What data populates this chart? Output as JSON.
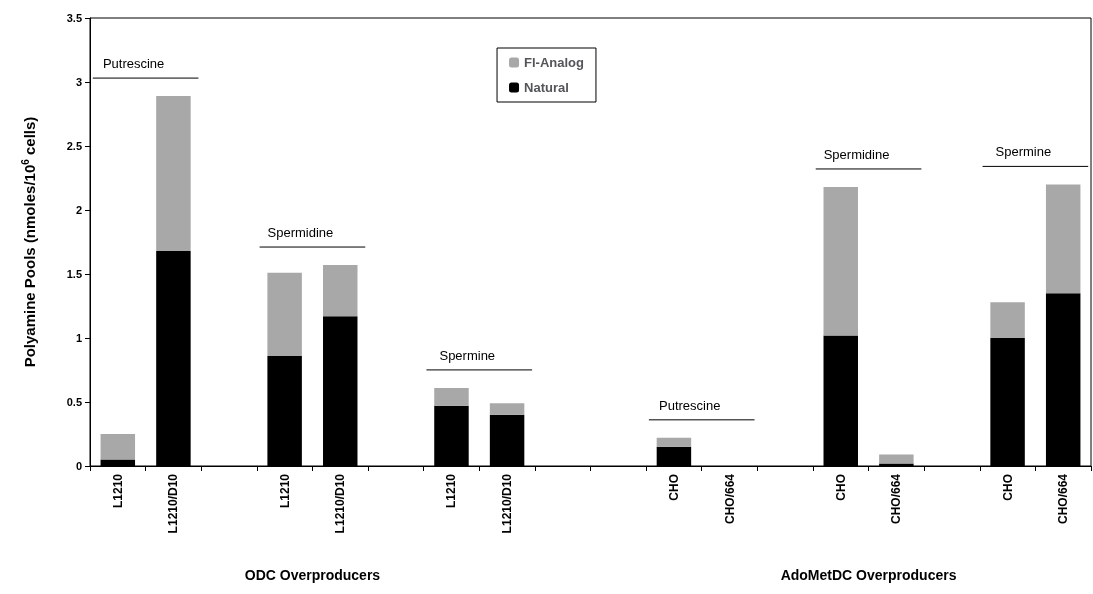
{
  "chart_data": {
    "type": "bar",
    "stacked": true,
    "ylabel": "Polyamine Pools (nmoles/10$^{6}$ cells)",
    "categories": [
      "L1210",
      "L1210/D10",
      null,
      "L1210",
      "L1210/D10",
      null,
      "L1210",
      "L1210/D10",
      null,
      null,
      "CHO",
      "CHO/664",
      null,
      "CHO",
      "CHO/664",
      null,
      "CHO",
      "CHO/664"
    ],
    "series": [
      {
        "name": "Natural",
        "color": "#000000",
        "values": [
          0.05,
          1.68,
          null,
          0.86,
          1.17,
          null,
          0.47,
          0.4,
          null,
          null,
          0.15,
          0,
          null,
          1.02,
          0.02,
          null,
          1.0,
          1.35
        ]
      },
      {
        "name": "Fl-Analog",
        "color": "#a8a8a8",
        "values": [
          0.2,
          1.21,
          null,
          0.65,
          0.4,
          null,
          0.14,
          0.09,
          null,
          null,
          0.07,
          0,
          null,
          1.16,
          0.07,
          null,
          0.28,
          0.85
        ]
      }
    ],
    "ylim": [
      0,
      3.5
    ],
    "yticks": [
      0,
      0.5,
      1,
      1.5,
      2,
      2.5,
      3,
      3.5
    ],
    "grid": false,
    "legend": "top",
    "annotations": [
      "Putrescine",
      "Spermidine",
      "Spermine",
      "Putrescine",
      "Spermidine",
      "Spermine",
      "ODC Overproducers",
      "AdoMetDC Overproducers"
    ]
  }
}
